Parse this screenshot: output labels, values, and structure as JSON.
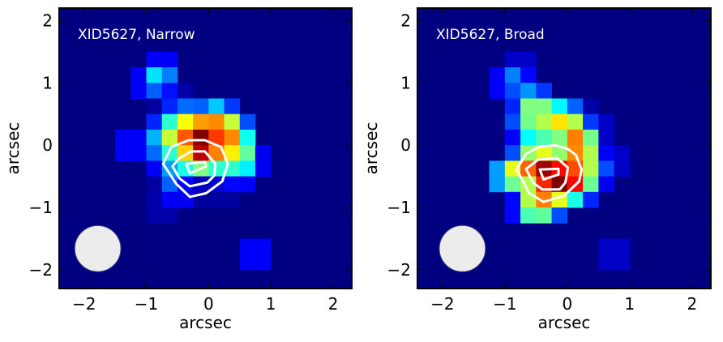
{
  "chart_data": [
    {
      "type": "heatmap",
      "title": "XID5627, Narrow",
      "xlabel": "arcsec",
      "ylabel": "arcsec",
      "xlim": [
        -2.4,
        2.3
      ],
      "ylim": [
        -2.3,
        2.2
      ],
      "xticks": [
        -2,
        -1,
        0,
        1,
        2
      ],
      "yticks": [
        -2,
        -1,
        0,
        1,
        2
      ],
      "tick_labels": {
        "x": [
          "−2",
          "−1",
          "0",
          "1",
          "2"
        ],
        "y": [
          "−2",
          "−1",
          "0",
          "1",
          "2"
        ]
      },
      "colormap": "jet",
      "pixel_size": 0.25,
      "grid_origin": {
        "x": -1.5,
        "y": 1.5
      },
      "grid": [
        [
          0,
          0,
          0.12,
          0.12,
          0,
          0,
          0,
          0,
          0,
          0
        ],
        [
          0,
          0.12,
          0.35,
          0.25,
          0,
          0,
          0,
          0,
          0,
          0
        ],
        [
          0,
          0.12,
          0.22,
          0.14,
          0.04,
          0,
          0,
          0,
          0,
          0
        ],
        [
          0,
          0,
          0.03,
          0.16,
          0.23,
          0.22,
          0.32,
          0.18,
          0,
          0
        ],
        [
          0,
          0,
          0.16,
          0.42,
          0.62,
          0.72,
          0.74,
          0.57,
          0.2,
          0
        ],
        [
          0.12,
          0.12,
          0.3,
          0.57,
          0.79,
          1.0,
          0.82,
          0.74,
          0.39,
          0
        ],
        [
          0.12,
          0.12,
          0.23,
          0.42,
          0.67,
          0.94,
          0.75,
          0.64,
          0.47,
          0.11
        ],
        [
          0,
          0,
          0.12,
          0.28,
          0.4,
          0.5,
          0.42,
          0.42,
          0.36,
          0.11
        ],
        [
          0,
          0,
          0.03,
          0.22,
          0.13,
          0.06,
          0.08,
          0.13,
          0.12,
          0
        ],
        [
          0,
          0,
          0.04,
          0.12,
          0.12,
          0.03,
          0.03,
          0.03,
          0,
          0
        ],
        [
          0,
          0,
          0.04,
          0.04,
          0,
          0,
          0,
          0,
          0,
          0
        ],
        [
          0,
          0,
          0,
          0,
          0,
          0,
          0,
          0,
          0,
          0
        ],
        [
          0,
          0,
          0,
          0,
          0,
          0,
          0,
          0,
          0.12,
          0.12
        ],
        [
          0,
          0,
          0,
          0,
          0,
          0,
          0,
          0,
          0.12,
          0.12
        ]
      ],
      "contours": [
        [
          [
            -0.73,
            -0.3
          ],
          [
            -0.6,
            -0.03
          ],
          [
            -0.32,
            0.08
          ],
          [
            -0.06,
            0.08
          ],
          [
            0.2,
            -0.03
          ],
          [
            0.31,
            -0.3
          ],
          [
            0.22,
            -0.58
          ],
          [
            -0.04,
            -0.77
          ],
          [
            -0.3,
            -0.83
          ],
          [
            -0.52,
            -0.62
          ]
        ],
        [
          [
            -0.58,
            -0.34
          ],
          [
            -0.47,
            -0.21
          ],
          [
            -0.28,
            -0.1
          ],
          [
            -0.06,
            -0.1
          ],
          [
            0.11,
            -0.3
          ],
          [
            0.09,
            -0.49
          ],
          [
            -0.02,
            -0.6
          ],
          [
            -0.3,
            -0.66
          ],
          [
            -0.47,
            -0.53
          ]
        ],
        [
          [
            -0.36,
            -0.3
          ],
          [
            -0.06,
            -0.27
          ],
          [
            -0.04,
            -0.34
          ],
          [
            -0.3,
            -0.45
          ]
        ]
      ],
      "beam": {
        "x": -1.78,
        "y": -1.66,
        "r": 0.37
      }
    },
    {
      "type": "heatmap",
      "title": "XID5627, Broad",
      "xlabel": "arcsec",
      "ylabel": "arcsec",
      "xlim": [
        -2.4,
        2.3
      ],
      "ylim": [
        -2.3,
        2.2
      ],
      "xticks": [
        -2,
        -1,
        0,
        1,
        2
      ],
      "yticks": [
        -2,
        -1,
        0,
        1,
        2
      ],
      "tick_labels": {
        "x": [
          "−2",
          "−1",
          "0",
          "1",
          "2"
        ],
        "y": [
          "−2",
          "−1",
          "0",
          "1",
          "2"
        ]
      },
      "colormap": "jet",
      "pixel_size": 0.25,
      "grid_origin": {
        "x": -1.25,
        "y": 1.5
      },
      "grid": [
        [
          0,
          0.07,
          0.07,
          0,
          0,
          0,
          0,
          0,
          0
        ],
        [
          0.12,
          0.25,
          0.13,
          0,
          0,
          0,
          0,
          0,
          0
        ],
        [
          0.12,
          0.2,
          0.27,
          0.18,
          0,
          0,
          0,
          0,
          0
        ],
        [
          0,
          0.16,
          0.5,
          0.5,
          0.37,
          0.22,
          0.04,
          0,
          0
        ],
        [
          0,
          0.2,
          0.49,
          0.55,
          0.65,
          0.55,
          0.18,
          0.07,
          0
        ],
        [
          0,
          0.12,
          0.38,
          0.45,
          0.5,
          0.75,
          0.49,
          0.07,
          0
        ],
        [
          0,
          0.2,
          0.52,
          0.6,
          0.52,
          0.74,
          0.55,
          0.12,
          0.07
        ],
        [
          0.28,
          0.6,
          0.78,
          0.97,
          0.87,
          0.8,
          0.55,
          0.2,
          0.07
        ],
        [
          0.28,
          0.48,
          0.55,
          0.84,
          1.0,
          0.87,
          0.48,
          0.11,
          0
        ],
        [
          0,
          0.13,
          0.55,
          0.75,
          0.6,
          0.4,
          0.16,
          0,
          0
        ],
        [
          0,
          0.13,
          0.45,
          0.47,
          0.2,
          0,
          0,
          0,
          0
        ],
        [
          0,
          0,
          0,
          0,
          0,
          0,
          0,
          0,
          0
        ],
        [
          0,
          0,
          0,
          0,
          0,
          0,
          0,
          0.07,
          0.07
        ],
        [
          0,
          0,
          0,
          0,
          0,
          0,
          0,
          0.07,
          0.07
        ]
      ],
      "contours": [
        [
          [
            -0.81,
            -0.39
          ],
          [
            -0.66,
            -0.14
          ],
          [
            -0.46,
            -0.03
          ],
          [
            -0.2,
            0.0
          ],
          [
            0.01,
            -0.06
          ],
          [
            0.14,
            -0.16
          ],
          [
            0.23,
            -0.39
          ],
          [
            0.19,
            -0.58
          ],
          [
            -0.05,
            -0.81
          ],
          [
            -0.38,
            -0.91
          ],
          [
            -0.61,
            -0.77
          ]
        ],
        [
          [
            -0.66,
            -0.38
          ],
          [
            -0.46,
            -0.23
          ],
          [
            -0.16,
            -0.21
          ],
          [
            0.01,
            -0.36
          ],
          [
            -0.03,
            -0.6
          ],
          [
            -0.12,
            -0.71
          ],
          [
            -0.4,
            -0.71
          ],
          [
            -0.55,
            -0.6
          ]
        ],
        [
          [
            -0.44,
            -0.39
          ],
          [
            -0.14,
            -0.38
          ],
          [
            -0.14,
            -0.47
          ],
          [
            -0.38,
            -0.55
          ]
        ]
      ],
      "beam": {
        "x": -1.68,
        "y": -1.66,
        "r": 0.37
      }
    }
  ],
  "colors": {
    "contour": "#ffffff",
    "beam_fill": "#ececec",
    "beam_edge": "#3a3f7a",
    "title": "#ffffff"
  }
}
